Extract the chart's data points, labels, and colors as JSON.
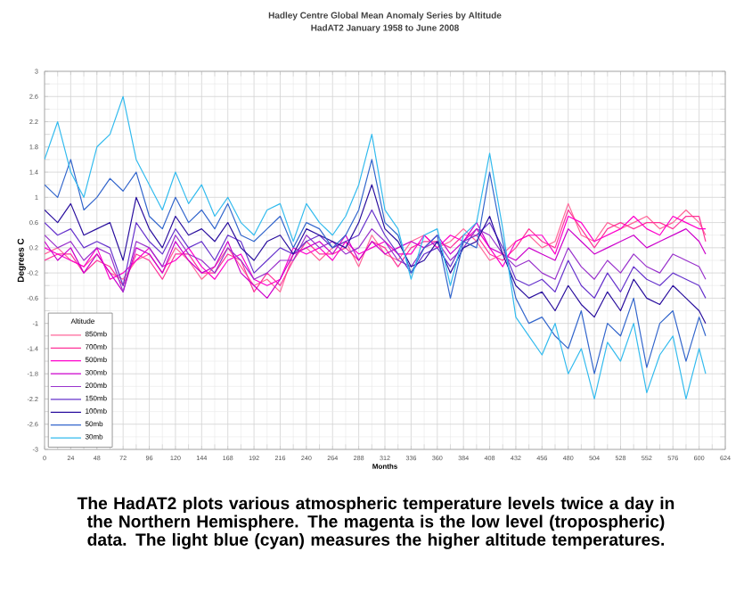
{
  "chart_data": {
    "type": "line",
    "title": "Hadley Centre Global Mean Anomaly Series by Altitude",
    "subtitle": "HadAT2 January 1958 to June 2008",
    "xlabel": "Months",
    "ylabel": "Degrees C",
    "legend_title": "Altitude",
    "legend": "bottom left",
    "grid": true,
    "marker": "none",
    "line_style": "solid",
    "annotations": [
      "The HadAT2 plots various atmospheric temperature levels twice a day in the Northern Hemisphere.  The magenta is the low level (tropospheric) data.  The light blue (cyan) measures the higher altitude temperatures."
    ],
    "xlim": [
      0,
      624
    ],
    "xticks": [
      0,
      24,
      48,
      72,
      96,
      120,
      144,
      168,
      192,
      216,
      240,
      264,
      288,
      312,
      336,
      360,
      384,
      408,
      432,
      456,
      480,
      504,
      528,
      552,
      576,
      600,
      624
    ],
    "ylim": [
      -3,
      3
    ],
    "yticks": [
      -3,
      -2.6,
      -2.2,
      -1.8,
      -1.4,
      -1,
      -0.6,
      -0.2,
      0.2,
      0.6,
      1,
      1.4,
      1.8,
      2.2,
      2.6,
      3
    ],
    "x": [
      0,
      12,
      24,
      36,
      48,
      60,
      72,
      84,
      96,
      108,
      120,
      132,
      144,
      156,
      168,
      180,
      192,
      204,
      216,
      228,
      240,
      252,
      264,
      276,
      288,
      300,
      312,
      324,
      336,
      348,
      360,
      372,
      384,
      396,
      408,
      420,
      432,
      444,
      456,
      468,
      480,
      492,
      504,
      516,
      528,
      540,
      552,
      564,
      576,
      588,
      600,
      606
    ],
    "series": [
      {
        "name": "850mb",
        "color": "#ff6699",
        "values": [
          0.1,
          0.2,
          0.0,
          -0.1,
          0.1,
          -0.2,
          -0.3,
          0.0,
          0.1,
          -0.2,
          0.2,
          0.0,
          -0.3,
          -0.1,
          0.2,
          -0.1,
          -0.4,
          -0.3,
          -0.5,
          0.1,
          0.2,
          0.0,
          0.2,
          0.3,
          -0.1,
          0.4,
          0.1,
          0.0,
          0.3,
          0.4,
          0.2,
          0.3,
          0.5,
          0.3,
          0.0,
          0.1,
          0.3,
          0.4,
          0.2,
          0.3,
          0.9,
          0.4,
          0.3,
          0.6,
          0.5,
          0.6,
          0.7,
          0.5,
          0.6,
          0.8,
          0.6,
          0.4
        ]
      },
      {
        "name": "700mb",
        "color": "#ff3399",
        "values": [
          0.0,
          0.1,
          0.1,
          -0.2,
          0.0,
          -0.1,
          -0.4,
          0.1,
          0.0,
          -0.3,
          0.1,
          0.1,
          -0.2,
          -0.2,
          0.1,
          0.0,
          -0.5,
          -0.2,
          -0.4,
          0.0,
          0.3,
          0.1,
          0.1,
          0.2,
          0.0,
          0.3,
          0.2,
          -0.1,
          0.2,
          0.3,
          0.3,
          0.2,
          0.4,
          0.4,
          0.1,
          0.0,
          0.2,
          0.5,
          0.3,
          0.2,
          0.8,
          0.5,
          0.2,
          0.5,
          0.6,
          0.5,
          0.6,
          0.6,
          0.5,
          0.7,
          0.7,
          0.3
        ]
      },
      {
        "name": "500mb",
        "color": "#ff00cc",
        "values": [
          0.2,
          0.1,
          0.0,
          -0.1,
          0.2,
          -0.3,
          -0.2,
          0.0,
          0.2,
          -0.1,
          0.0,
          0.2,
          -0.1,
          -0.3,
          0.0,
          0.1,
          -0.3,
          -0.4,
          -0.3,
          0.2,
          0.1,
          0.2,
          0.0,
          0.3,
          0.1,
          0.2,
          0.3,
          0.1,
          0.1,
          0.4,
          0.2,
          0.4,
          0.3,
          0.5,
          0.2,
          -0.1,
          0.3,
          0.4,
          0.4,
          0.1,
          0.7,
          0.6,
          0.3,
          0.4,
          0.5,
          0.7,
          0.5,
          0.4,
          0.7,
          0.6,
          0.5,
          0.5
        ]
      },
      {
        "name": "300mb",
        "color": "#cc00cc",
        "values": [
          0.3,
          0.0,
          0.2,
          -0.2,
          0.1,
          -0.2,
          -0.5,
          0.2,
          0.1,
          -0.2,
          0.3,
          0.0,
          -0.2,
          -0.1,
          0.3,
          -0.2,
          -0.4,
          -0.6,
          -0.3,
          0.1,
          0.2,
          0.3,
          0.1,
          0.4,
          0.0,
          0.3,
          0.1,
          0.2,
          0.3,
          0.2,
          0.4,
          0.1,
          0.3,
          0.6,
          0.2,
          0.1,
          0.0,
          0.2,
          0.1,
          0.0,
          0.5,
          0.3,
          0.1,
          0.2,
          0.3,
          0.4,
          0.2,
          0.3,
          0.4,
          0.5,
          0.3,
          0.1
        ]
      },
      {
        "name": "200mb",
        "color": "#9933cc",
        "values": [
          0.4,
          0.2,
          0.3,
          0.0,
          0.2,
          0.1,
          -0.5,
          0.3,
          0.2,
          -0.1,
          0.4,
          0.1,
          0.0,
          -0.2,
          0.2,
          0.0,
          -0.3,
          -0.2,
          0.0,
          0.0,
          0.4,
          0.2,
          0.3,
          0.1,
          0.2,
          0.5,
          0.3,
          0.0,
          -0.1,
          0.2,
          0.3,
          0.0,
          0.2,
          0.5,
          0.4,
          0.1,
          -0.1,
          0.0,
          -0.2,
          -0.3,
          0.2,
          -0.1,
          -0.3,
          0.0,
          -0.2,
          0.1,
          -0.1,
          -0.2,
          0.1,
          0.0,
          -0.1,
          -0.3
        ]
      },
      {
        "name": "150mb",
        "color": "#6633cc",
        "values": [
          0.6,
          0.4,
          0.5,
          0.2,
          0.3,
          0.2,
          -0.4,
          0.6,
          0.3,
          0.1,
          0.5,
          0.2,
          0.3,
          0.0,
          0.4,
          0.3,
          -0.2,
          0.0,
          0.2,
          0.1,
          0.3,
          0.4,
          0.2,
          0.3,
          0.4,
          0.8,
          0.4,
          0.1,
          -0.2,
          0.1,
          0.2,
          -0.1,
          0.3,
          0.4,
          0.6,
          0.2,
          -0.3,
          -0.4,
          -0.3,
          -0.5,
          0.0,
          -0.4,
          -0.6,
          -0.2,
          -0.5,
          -0.1,
          -0.3,
          -0.4,
          -0.2,
          -0.3,
          -0.4,
          -0.6
        ]
      },
      {
        "name": "100mb",
        "color": "#2a0f9e",
        "values": [
          0.8,
          0.6,
          0.9,
          0.4,
          0.5,
          0.6,
          0.0,
          1.0,
          0.5,
          0.2,
          0.7,
          0.4,
          0.5,
          0.3,
          0.6,
          0.2,
          0.0,
          0.3,
          0.4,
          0.1,
          0.5,
          0.4,
          0.3,
          0.2,
          0.6,
          1.2,
          0.5,
          0.3,
          -0.1,
          0.0,
          0.3,
          -0.2,
          0.2,
          0.3,
          0.7,
          0.1,
          -0.4,
          -0.6,
          -0.5,
          -0.8,
          -0.4,
          -0.7,
          -0.9,
          -0.5,
          -0.8,
          -0.3,
          -0.6,
          -0.7,
          -0.4,
          -0.6,
          -0.8,
          -1.0
        ]
      },
      {
        "name": "50mb",
        "color": "#3366cc",
        "values": [
          1.2,
          1.0,
          1.6,
          0.8,
          1.0,
          1.3,
          1.1,
          1.4,
          0.7,
          0.5,
          1.0,
          0.6,
          0.8,
          0.5,
          0.9,
          0.4,
          0.3,
          0.5,
          0.7,
          0.2,
          0.6,
          0.5,
          0.2,
          0.4,
          0.8,
          1.6,
          0.6,
          0.4,
          -0.2,
          0.2,
          0.4,
          -0.6,
          0.3,
          0.2,
          1.4,
          0.3,
          -0.6,
          -1.0,
          -0.9,
          -1.2,
          -1.4,
          -0.8,
          -1.8,
          -1.0,
          -1.2,
          -0.6,
          -1.7,
          -1.0,
          -0.8,
          -1.6,
          -0.9,
          -1.2
        ]
      },
      {
        "name": "30mb",
        "color": "#33bbee",
        "values": [
          1.6,
          2.2,
          1.4,
          1.0,
          1.8,
          2.0,
          2.6,
          1.6,
          1.2,
          0.8,
          1.4,
          0.9,
          1.2,
          0.7,
          1.0,
          0.6,
          0.4,
          0.8,
          0.9,
          0.3,
          0.9,
          0.6,
          0.4,
          0.7,
          1.2,
          2.0,
          0.8,
          0.5,
          -0.3,
          0.4,
          0.5,
          -0.4,
          0.4,
          0.6,
          1.7,
          0.5,
          -0.9,
          -1.2,
          -1.5,
          -1.0,
          -1.8,
          -1.4,
          -2.2,
          -1.3,
          -1.6,
          -1.0,
          -2.1,
          -1.5,
          -1.2,
          -2.2,
          -1.4,
          -1.8
        ]
      }
    ]
  }
}
